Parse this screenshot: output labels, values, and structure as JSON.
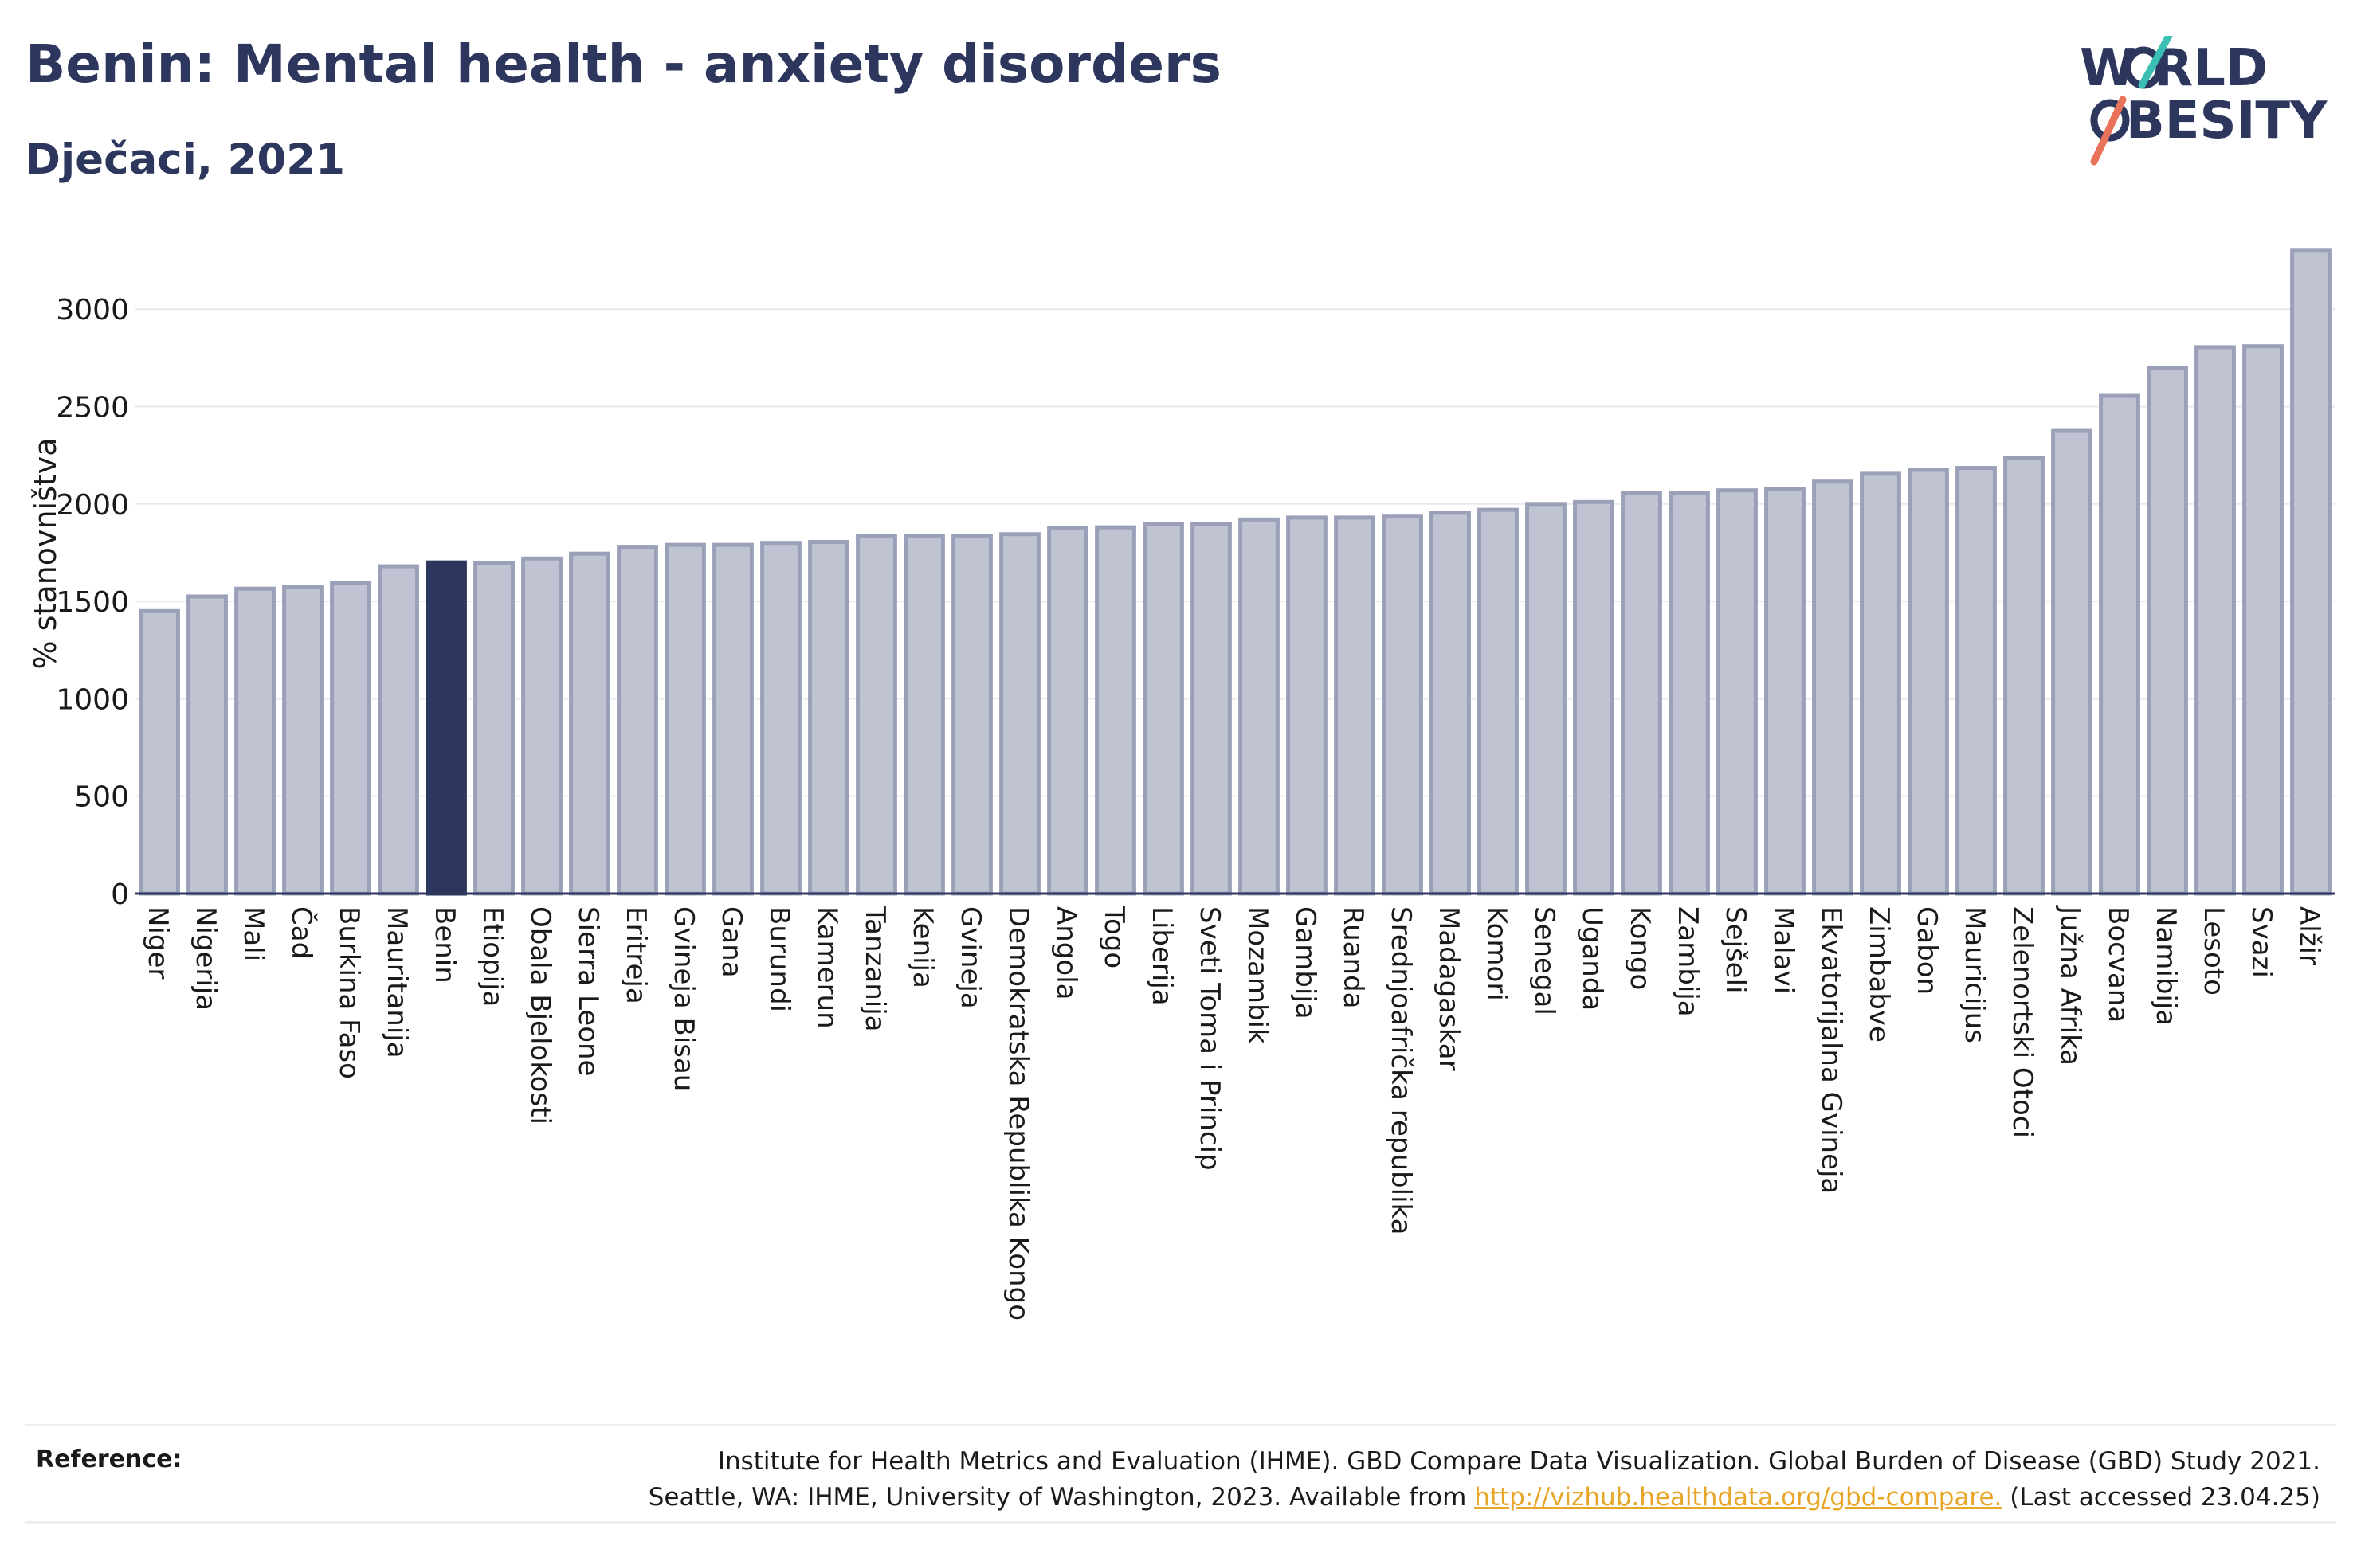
{
  "header": {
    "title": "Benin: Mental health - anxiety disorders",
    "subtitle": "Dječaci, 2021"
  },
  "logo": {
    "line1": "W RLD",
    "line2": "BESITY",
    "text_color": "#2d365d",
    "slash_colors": [
      "#3bbfb5",
      "#e8735a"
    ]
  },
  "chart_data": {
    "type": "bar",
    "title": "Benin: Mental health - anxiety disorders",
    "subtitle": "Dječaci, 2021",
    "ylabel": "% stanovništva",
    "xlabel": "",
    "ylim": [
      0,
      3300
    ],
    "yticks": [
      0,
      500,
      1000,
      1500,
      2000,
      2500,
      3000
    ],
    "grid": true,
    "highlight": "Benin",
    "colors": {
      "bar": "#c0c4d2",
      "bar_edge": "#9aa0b8",
      "highlight": "#2d365d",
      "grid": "#e8e8ee",
      "axis": "#2d365d"
    },
    "categories": [
      "Niger",
      "Nigerija",
      "Mali",
      "Čad",
      "Burkina Faso",
      "Mauritanija",
      "Benin",
      "Etiopija",
      "Obala Bjelokosti",
      "Sierra Leone",
      "Eritreja",
      "Gvineja Bisau",
      "Gana",
      "Burundi",
      "Kamerun",
      "Tanzanija",
      "Kenija",
      "Gvineja",
      "Demokratska Republika Kongo",
      "Angola",
      "Togo",
      "Liberija",
      "Sveti Toma i Princip",
      "Mozambik",
      "Gambija",
      "Ruanda",
      "Srednjoafrička republika",
      "Madagaskar",
      "Komori",
      "Senegal",
      "Uganda",
      "Kongo",
      "Zambija",
      "Sejšeli",
      "Malavi",
      "Ekvatorijalna Gvineja",
      "Zimbabve",
      "Gabon",
      "Mauricijus",
      "Zelenortski Otoci",
      "Južna Afrika",
      "Bocvana",
      "Namibija",
      "Lesoto",
      "Svazi",
      "Alžir"
    ],
    "values": [
      1450,
      1525,
      1565,
      1575,
      1595,
      1680,
      1700,
      1695,
      1720,
      1745,
      1780,
      1790,
      1790,
      1800,
      1805,
      1835,
      1835,
      1835,
      1845,
      1875,
      1880,
      1895,
      1895,
      1920,
      1930,
      1930,
      1935,
      1955,
      1970,
      2000,
      2010,
      2055,
      2055,
      2070,
      2075,
      2115,
      2155,
      2175,
      2185,
      2235,
      2375,
      2555,
      2700,
      2805,
      2810,
      3300
    ]
  },
  "reference": {
    "label": "Reference:",
    "line1": "Institute for Health Metrics and Evaluation (IHME). GBD Compare Data Visualization. Global Burden of Disease (GBD) Study 2021.",
    "line2_prefix": "Seattle, WA: IHME, University of Washington, 2023. Available from ",
    "link": "http://vizhub.healthdata.org/gbd-compare.",
    "line2_suffix": " (Last accessed 23.04.25)"
  }
}
